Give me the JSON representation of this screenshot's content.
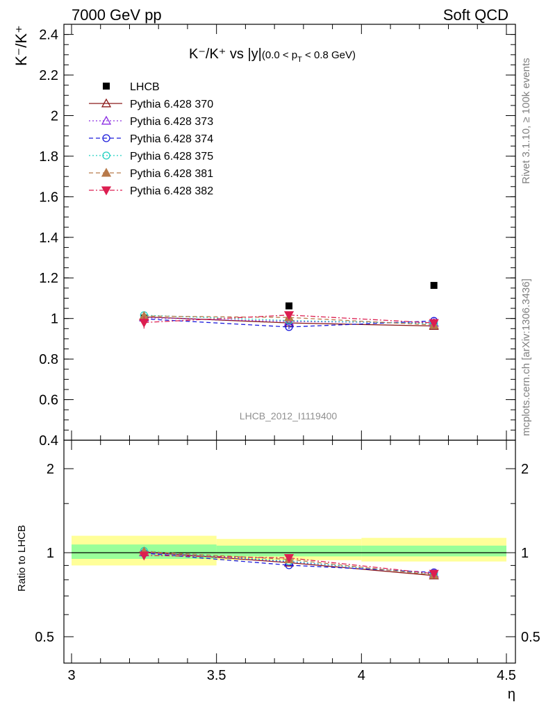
{
  "header": {
    "left": "7000 GeV pp",
    "right": "Soft QCD"
  },
  "side": {
    "rivet": "Rivet 3.1.10, ≥ 100k events",
    "mcplots": "mcplots.cern.ch [arXiv:1306.3436]"
  },
  "analysis_label": "LHCB_2012_I1119400",
  "title": {
    "main": "K⁻/K⁺ vs |y|",
    "cut": "(0.0 < p",
    "cut_sub": "T",
    "cut_tail": " < 0.8 GeV)"
  },
  "ylabel_main": "K⁻/K⁺",
  "ylabel_ratio": "Ratio to LHCB",
  "xlabel": "η",
  "colors": {
    "band_inner": "#99ff99",
    "band_outer": "#ffff99"
  },
  "chart_data": [
    {
      "type": "scatter",
      "panel": "main",
      "x_edges": [
        3.0,
        3.5,
        4.0,
        4.5
      ],
      "x": [
        3.25,
        3.75,
        4.25
      ],
      "xlim": [
        3.0,
        4.5
      ],
      "ylim": [
        0.4,
        2.45
      ],
      "yticks": [
        0.4,
        0.6,
        0.8,
        1,
        1.2,
        1.4,
        1.6,
        1.8,
        2,
        2.2,
        2.4
      ],
      "ytick_labels": [
        "0.4",
        "0.6",
        "0.8",
        "1",
        "1.2",
        "1.4",
        "1.6",
        "1.8",
        "2",
        "2.2",
        "2.4"
      ],
      "legend_position": "top-left",
      "series": [
        {
          "name": "LHCB",
          "values": [
            1.002,
            1.062,
            1.163
          ],
          "errors": [
            0.01,
            0.01,
            0.01
          ],
          "color": "#000000",
          "marker": "square",
          "line": "none"
        },
        {
          "name": "Pythia 6.428 370",
          "values": [
            1.008,
            0.978,
            0.963
          ],
          "errors": [
            0.01,
            0.01,
            0.01
          ],
          "color": "#8b1a1a",
          "marker": "triangle-open",
          "line": "solid"
        },
        {
          "name": "Pythia 6.428 373",
          "values": [
            1.004,
            0.985,
            0.978
          ],
          "errors": [
            0.01,
            0.01,
            0.01
          ],
          "color": "#8a2be2",
          "marker": "triangle-open",
          "line": "dotted"
        },
        {
          "name": "Pythia 6.428 374",
          "values": [
            0.998,
            0.958,
            0.988
          ],
          "errors": [
            0.01,
            0.01,
            0.01
          ],
          "color": "#1a1adb",
          "marker": "circle-open",
          "line": "dashed"
        },
        {
          "name": "Pythia 6.428 375",
          "values": [
            1.016,
            0.99,
            0.975
          ],
          "errors": [
            0.01,
            0.01,
            0.01
          ],
          "color": "#20d0c0",
          "marker": "circle-open",
          "line": "dotted"
        },
        {
          "name": "Pythia 6.428 381",
          "values": [
            1.012,
            1.005,
            0.968
          ],
          "errors": [
            0.01,
            0.01,
            0.01
          ],
          "color": "#b87a4a",
          "marker": "triangle-filled",
          "line": "dashed"
        },
        {
          "name": "Pythia 6.428 382",
          "values": [
            0.98,
            1.017,
            0.978
          ],
          "errors": [
            0.03,
            0.01,
            0.01
          ],
          "color": "#dc1e50",
          "marker": "triangle-down-filled",
          "line": "dashdot"
        }
      ]
    },
    {
      "type": "scatter",
      "panel": "ratio",
      "x": [
        3.25,
        3.75,
        4.25
      ],
      "xlim": [
        3.0,
        4.5
      ],
      "ylim": [
        0.4,
        2.45
      ],
      "yscale": "log",
      "yticks": [
        0.5,
        1,
        2
      ],
      "ytick_labels": [
        "0.5",
        "1",
        "2"
      ],
      "xticks": [
        3,
        3.5,
        4,
        4.5
      ],
      "xtick_labels": [
        "3",
        "3.5",
        "4",
        "4.5"
      ],
      "band_inner": [
        [
          0.95,
          1.07
        ],
        [
          0.97,
          1.06
        ],
        [
          0.97,
          1.06
        ]
      ],
      "band_outer": [
        [
          0.9,
          1.15
        ],
        [
          0.94,
          1.12
        ],
        [
          0.93,
          1.13
        ]
      ],
      "series": [
        {
          "name": "Pythia 6.428 370",
          "values": [
            1.006,
            0.921,
            0.828
          ]
        },
        {
          "name": "Pythia 6.428 373",
          "values": [
            1.002,
            0.928,
            0.841
          ]
        },
        {
          "name": "Pythia 6.428 374",
          "values": [
            0.996,
            0.902,
            0.85
          ]
        },
        {
          "name": "Pythia 6.428 375",
          "values": [
            1.014,
            0.932,
            0.838
          ]
        },
        {
          "name": "Pythia 6.428 381",
          "values": [
            1.01,
            0.946,
            0.832
          ]
        },
        {
          "name": "Pythia 6.428 382",
          "values": [
            0.978,
            0.958,
            0.841
          ]
        }
      ]
    }
  ]
}
